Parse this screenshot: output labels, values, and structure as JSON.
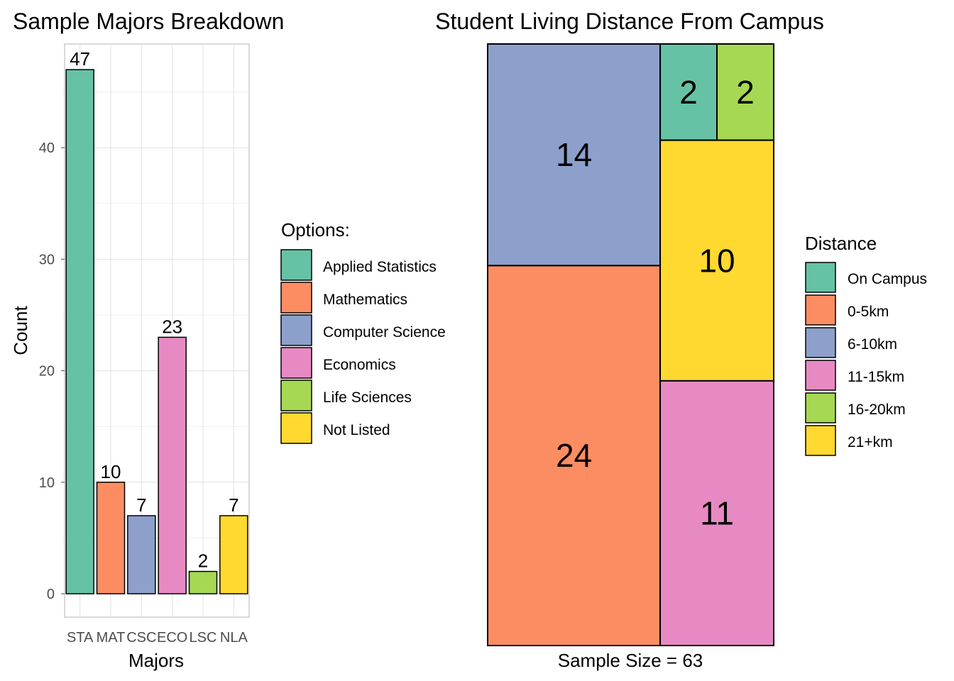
{
  "chart_data": [
    {
      "type": "bar",
      "title": "Sample Majors Breakdown",
      "xlabel": "Majors",
      "ylabel": "Count",
      "categories": [
        "STA",
        "MAT",
        "CSC",
        "ECO",
        "LSC",
        "NLA"
      ],
      "values": [
        47,
        10,
        7,
        23,
        2,
        7
      ],
      "colors": [
        "#66C2A5",
        "#FC8D62",
        "#8DA0CB",
        "#E78AC3",
        "#A6D854",
        "#FFD92F"
      ],
      "ylim": [
        0,
        49
      ],
      "yticks": [
        "0",
        "10",
        "20",
        "30",
        "40"
      ],
      "grid": true,
      "legend_placement": "right",
      "legend": {
        "title": "Options:",
        "items": [
          "Applied Statistics",
          "Mathematics",
          "Computer Science",
          "Economics",
          "Life Sciences",
          "Not Listed"
        ]
      }
    },
    {
      "type": "treemap",
      "title": "Student Living Distance From Campus",
      "xlabel": "Sample Size = 63",
      "cells": [
        {
          "label": "On Campus",
          "value": 2
        },
        {
          "label": "0-5km",
          "value": 24
        },
        {
          "label": "6-10km",
          "value": 14
        },
        {
          "label": "11-15km",
          "value": 11
        },
        {
          "label": "16-20km",
          "value": 2
        },
        {
          "label": "21+km",
          "value": 10
        }
      ],
      "colors": [
        "#66C2A5",
        "#FC8D62",
        "#8DA0CB",
        "#E78AC3",
        "#A6D854",
        "#FFD92F"
      ],
      "legend_placement": "right",
      "legend": {
        "title": "Distance",
        "items": [
          "On Campus",
          "0-5km",
          "6-10km",
          "11-15km",
          "16-20km",
          "21+km"
        ]
      }
    }
  ]
}
